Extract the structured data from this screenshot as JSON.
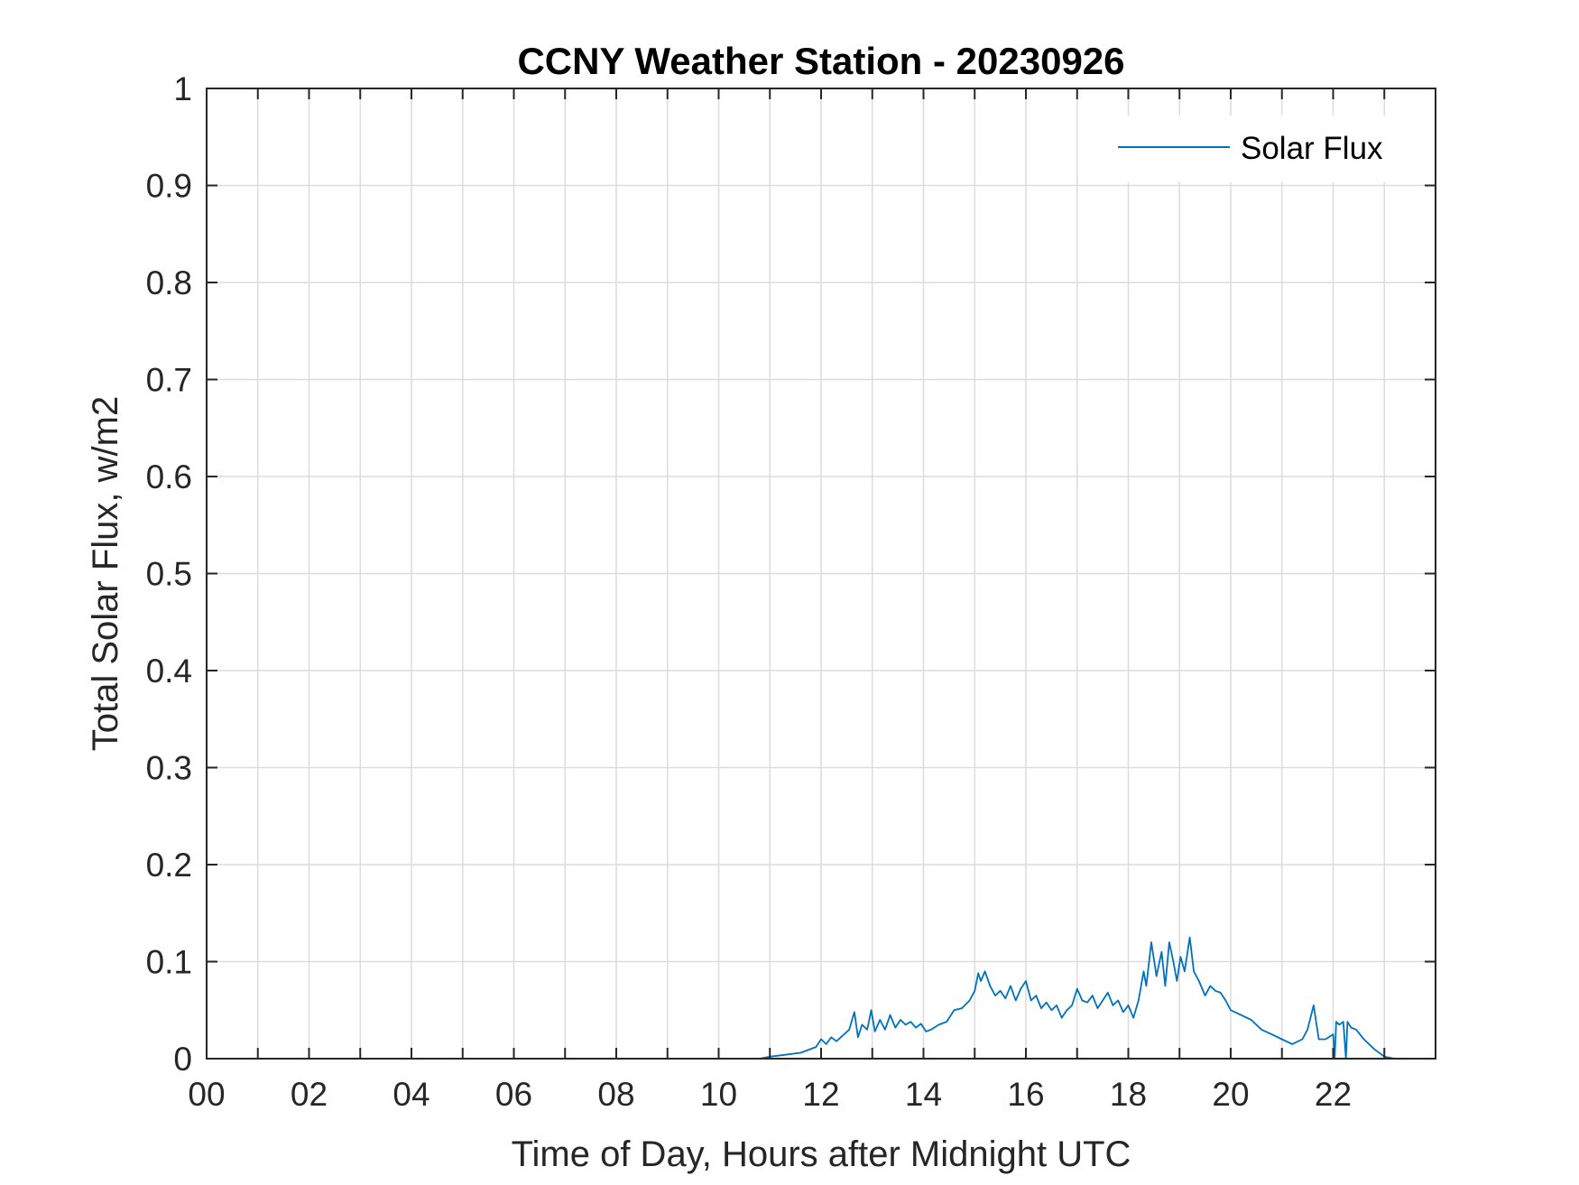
{
  "chart_data": {
    "type": "line",
    "title": "CCNY Weather Station - 20230926",
    "xlabel": "Time of Day, Hours after Midnight UTC",
    "ylabel": "Total Solar Flux, w/m2",
    "xlim": [
      0,
      24
    ],
    "ylim": [
      0,
      1
    ],
    "x_ticks": [
      0,
      2,
      4,
      6,
      8,
      10,
      12,
      14,
      16,
      18,
      20,
      22
    ],
    "x_tick_labels": [
      "00",
      "02",
      "04",
      "06",
      "08",
      "10",
      "12",
      "14",
      "16",
      "18",
      "20",
      "22"
    ],
    "y_ticks": [
      0,
      0.1,
      0.2,
      0.3,
      0.4,
      0.5,
      0.6,
      0.7,
      0.8,
      0.9,
      1
    ],
    "y_tick_labels": [
      "0",
      "0.1",
      "0.2",
      "0.3",
      "0.4",
      "0.5",
      "0.6",
      "0.7",
      "0.8",
      "0.9",
      "1"
    ],
    "grid": true,
    "legend": {
      "position": "top-right"
    },
    "series": [
      {
        "name": "Solar Flux",
        "color": "#0072bd",
        "x": [
          0,
          10.8,
          11.0,
          11.3,
          11.6,
          11.9,
          12.0,
          12.1,
          12.2,
          12.3,
          12.45,
          12.55,
          12.65,
          12.72,
          12.8,
          12.9,
          12.98,
          13.05,
          13.15,
          13.25,
          13.35,
          13.45,
          13.55,
          13.65,
          13.75,
          13.85,
          13.95,
          14.05,
          14.15,
          14.3,
          14.45,
          14.6,
          14.75,
          14.9,
          15.0,
          15.07,
          15.12,
          15.2,
          15.3,
          15.4,
          15.5,
          15.6,
          15.7,
          15.8,
          15.9,
          16.0,
          16.1,
          16.2,
          16.3,
          16.4,
          16.5,
          16.6,
          16.7,
          16.8,
          16.9,
          17.0,
          17.1,
          17.2,
          17.3,
          17.4,
          17.5,
          17.6,
          17.7,
          17.8,
          17.9,
          18.0,
          18.1,
          18.2,
          18.3,
          18.35,
          18.45,
          18.55,
          18.65,
          18.72,
          18.8,
          18.88,
          18.95,
          19.02,
          19.1,
          19.2,
          19.28,
          19.38,
          19.5,
          19.6,
          19.7,
          19.8,
          19.9,
          20.0,
          20.2,
          20.4,
          20.6,
          20.8,
          21.0,
          21.2,
          21.4,
          21.5,
          21.62,
          21.72,
          21.85,
          22.0,
          22.03,
          22.06,
          22.12,
          22.2,
          22.25,
          22.28,
          22.35,
          22.45,
          22.6,
          22.8,
          23.0,
          23.2,
          24.0
        ],
        "y": [
          0,
          0,
          0.002,
          0.004,
          0.006,
          0.012,
          0.02,
          0.015,
          0.022,
          0.018,
          0.025,
          0.03,
          0.048,
          0.022,
          0.035,
          0.03,
          0.05,
          0.028,
          0.04,
          0.03,
          0.045,
          0.032,
          0.04,
          0.035,
          0.038,
          0.032,
          0.036,
          0.028,
          0.03,
          0.035,
          0.038,
          0.05,
          0.052,
          0.06,
          0.07,
          0.088,
          0.08,
          0.09,
          0.075,
          0.065,
          0.07,
          0.062,
          0.075,
          0.06,
          0.072,
          0.08,
          0.06,
          0.065,
          0.052,
          0.058,
          0.05,
          0.055,
          0.042,
          0.05,
          0.055,
          0.072,
          0.06,
          0.058,
          0.065,
          0.052,
          0.06,
          0.068,
          0.055,
          0.06,
          0.048,
          0.055,
          0.042,
          0.06,
          0.09,
          0.075,
          0.12,
          0.085,
          0.11,
          0.075,
          0.12,
          0.1,
          0.08,
          0.105,
          0.09,
          0.125,
          0.09,
          0.08,
          0.065,
          0.075,
          0.07,
          0.068,
          0.06,
          0.05,
          0.045,
          0.04,
          0.03,
          0.025,
          0.02,
          0.015,
          0.02,
          0.03,
          0.055,
          0.02,
          0.02,
          0.025,
          0,
          0.038,
          0.035,
          0.038,
          0,
          0.038,
          0.032,
          0.03,
          0.02,
          0.01,
          0.002,
          0,
          0
        ]
      }
    ]
  }
}
